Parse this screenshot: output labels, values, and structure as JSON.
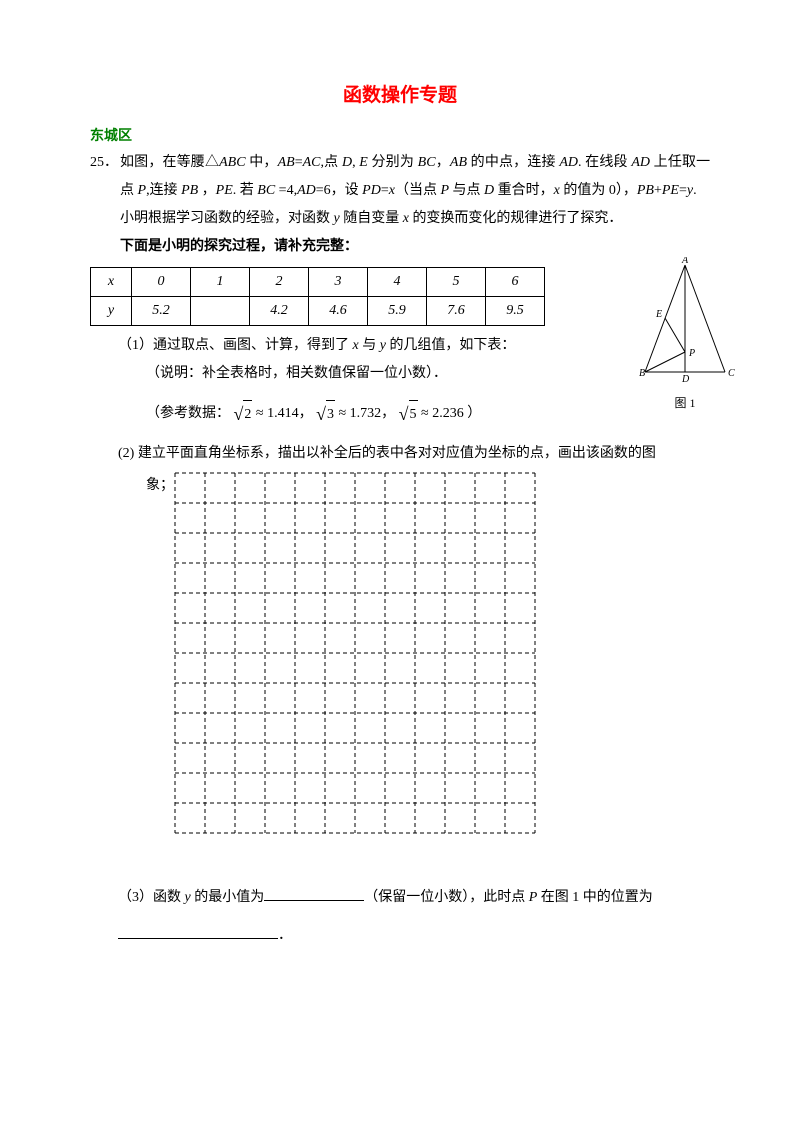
{
  "title": "函数操作专题",
  "district": "东城区",
  "problem_number": "25．",
  "problem_text_1": "如图，在等腰△",
  "problem_text_2": "中，",
  "problem_text_3": "点",
  "problem_text_4": "分别为",
  "problem_text_5": "的中点，连接",
  "problem_text_6": "在线段",
  "problem_text_7": "上任取一点",
  "problem_text_8": "连接",
  "problem_text_9": "若",
  "problem_text_10": "设",
  "problem_text_11": "（当点",
  "problem_text_12": "与点",
  "problem_text_13": "重合时，",
  "problem_text_14": "的值为",
  "problem_text_15": "0），",
  "problem_text_16": "小明根据学习函数的经验，对函数",
  "problem_text_17": "随自变量",
  "problem_text_18": "的变换而变化的规律进行了探究．",
  "bold_line": "下面是小明的探究过程，请补充完整：",
  "table": {
    "row1": [
      "x",
      "0",
      "1",
      "2",
      "3",
      "4",
      "5",
      "6"
    ],
    "row2": [
      "y",
      "5.2",
      "",
      "4.2",
      "4.6",
      "5.9",
      "7.6",
      "9.5"
    ]
  },
  "fig1": {
    "A": "A",
    "B": "B",
    "C": "C",
    "D": "D",
    "E": "E",
    "P": "P",
    "caption": "图 1"
  },
  "q1_a": "（1）通过取点、画图、计算，得到了",
  "q1_b": "与",
  "q1_c": "的几组值，如下表：",
  "q1_note": "（说明：补全表格时，相关数值保留一位小数）．",
  "ref_label": "（参考数据：",
  "ref_end": "）",
  "sqrt2": "2",
  "sqrt2_val": "1.414",
  "sqrt3": "3",
  "sqrt3_val": "1.732",
  "sqrt5": "5",
  "sqrt5_val": "2.236",
  "approx": "≈",
  "q2": "(2)  建立平面直角坐标系，描出以补全后的表中各对对应值为坐标的点，画出该函数的图",
  "q2_b": "象；",
  "grid": {
    "cols": 12,
    "rows": 12,
    "cell": 30,
    "color": "#000000"
  },
  "q3_a": "（3）函数",
  "q3_b": "的最小值为",
  "q3_c": "（保留一位小数），此时点",
  "q3_d": "在图 1 中的位置为",
  "q3_e": "．",
  "vars": {
    "ABC": "ABC",
    "AB": "AB",
    "AC": "AC",
    "D": "D",
    "E": "E",
    "BC": "BC",
    "AD": "AD",
    "P": "P",
    "PB": "PB",
    "PE": "PE",
    "PD": "PD",
    "x": "x",
    "y": "y",
    "eq4": " =4,",
    "eq6": "=6，"
  }
}
